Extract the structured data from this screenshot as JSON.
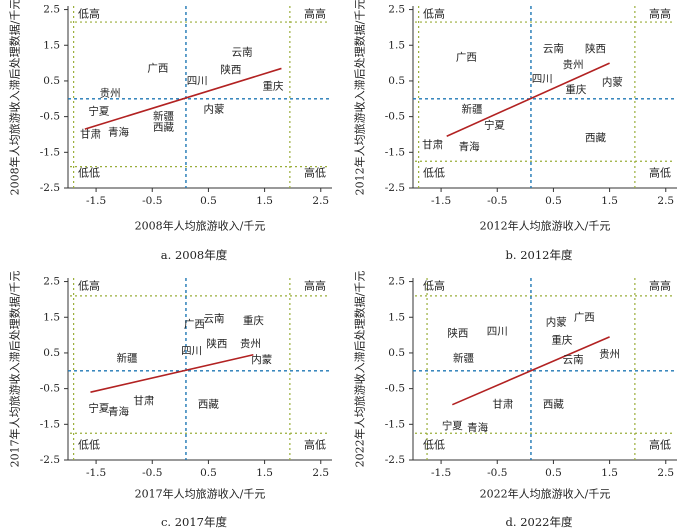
{
  "colors": {
    "axis": "#333333",
    "center_line": "#1f77b4",
    "quadrant_line": "#9aae3a",
    "regression": "#b22222",
    "text": "#222222"
  },
  "chart_data": [
    {
      "type": "scatter",
      "caption": "a.  2008年度",
      "xlabel": "2008年人均旅游收入/千元",
      "ylabel": "2008年人均旅游收入滞后处理数据/千元",
      "xlim": [
        -2.0,
        2.7
      ],
      "ylim": [
        -2.5,
        2.6
      ],
      "xticks": [
        "-1.5",
        "-0.5",
        "0.5",
        "1.5",
        "2.5"
      ],
      "yticks": [
        "2.5",
        "1.5",
        "0.5",
        "-0.5",
        "-1.5",
        "-2.5"
      ],
      "quadrant_labels": {
        "top_left": "低高",
        "top_right": "高高",
        "bottom_left": "低低",
        "bottom_right": "高低"
      },
      "center": {
        "x": 0.1,
        "y": 0.0
      },
      "quadrant_bounds": {
        "x": [
          -1.9,
          1.95
        ],
        "y": [
          -1.9,
          2.15
        ]
      },
      "regression_line": {
        "x": [
          -1.7,
          1.8
        ],
        "y": [
          -0.85,
          0.85
        ]
      },
      "points": [
        {
          "label": "广西",
          "x": -0.4,
          "y": 0.85
        },
        {
          "label": "云南",
          "x": 1.1,
          "y": 1.3
        },
        {
          "label": "陕西",
          "x": 0.9,
          "y": 0.8
        },
        {
          "label": "四川",
          "x": 0.3,
          "y": 0.5
        },
        {
          "label": "贵州",
          "x": -1.25,
          "y": 0.15
        },
        {
          "label": "重庆",
          "x": 1.65,
          "y": 0.35
        },
        {
          "label": "内蒙",
          "x": 0.6,
          "y": -0.3
        },
        {
          "label": "宁夏",
          "x": -1.45,
          "y": -0.35
        },
        {
          "label": "新疆",
          "x": -0.3,
          "y": -0.5
        },
        {
          "label": "西藏",
          "x": -0.3,
          "y": -0.8
        },
        {
          "label": "甘肃",
          "x": -1.6,
          "y": -1.0
        },
        {
          "label": "青海",
          "x": -1.1,
          "y": -0.95
        }
      ]
    },
    {
      "type": "scatter",
      "caption": "b.  2012年度",
      "xlabel": "2012年人均旅游收入/千元",
      "ylabel": "2012年人均旅游收入滞后处理数据/千元",
      "xlim": [
        -2.0,
        2.7
      ],
      "ylim": [
        -2.5,
        2.6
      ],
      "xticks": [
        "-1.5",
        "-0.5",
        "0.5",
        "1.5",
        "2.5"
      ],
      "yticks": [
        "2.5",
        "1.5",
        "0.5",
        "-0.5",
        "-1.5",
        "-2.5"
      ],
      "quadrant_labels": {
        "top_left": "低高",
        "top_right": "高高",
        "bottom_left": "低低",
        "bottom_right": "高低"
      },
      "center": {
        "x": 0.1,
        "y": 0.0
      },
      "quadrant_bounds": {
        "x": [
          -1.9,
          1.95
        ],
        "y": [
          -1.75,
          2.15
        ]
      },
      "regression_line": {
        "x": [
          -1.4,
          1.5
        ],
        "y": [
          -1.05,
          1.0
        ]
      },
      "points": [
        {
          "label": "广西",
          "x": -1.05,
          "y": 1.15
        },
        {
          "label": "云南",
          "x": 0.5,
          "y": 1.4
        },
        {
          "label": "陕西",
          "x": 1.25,
          "y": 1.4
        },
        {
          "label": "贵州",
          "x": 0.85,
          "y": 0.95
        },
        {
          "label": "四川",
          "x": 0.3,
          "y": 0.55
        },
        {
          "label": "内蒙",
          "x": 1.55,
          "y": 0.45
        },
        {
          "label": "重庆",
          "x": 0.9,
          "y": 0.25
        },
        {
          "label": "新疆",
          "x": -0.95,
          "y": -0.3
        },
        {
          "label": "宁夏",
          "x": -0.55,
          "y": -0.75
        },
        {
          "label": "西藏",
          "x": 1.25,
          "y": -1.1
        },
        {
          "label": "甘肃",
          "x": -1.65,
          "y": -1.3
        },
        {
          "label": "青海",
          "x": -1.0,
          "y": -1.35
        }
      ]
    },
    {
      "type": "scatter",
      "caption": "c.  2017年度",
      "xlabel": "2017年人均旅游收入/千元",
      "ylabel": "2017年人均旅游收入滞后处理数据/千元",
      "xlim": [
        -2.0,
        2.7
      ],
      "ylim": [
        -2.5,
        2.6
      ],
      "xticks": [
        "-1.5",
        "-0.5",
        "0.5",
        "1.5",
        "2.5"
      ],
      "yticks": [
        "2.5",
        "1.5",
        "0.5",
        "-0.5",
        "-1.5",
        "-2.5"
      ],
      "quadrant_labels": {
        "top_left": "低高",
        "top_right": "高高",
        "bottom_left": "低低",
        "bottom_right": "高低"
      },
      "center": {
        "x": 0.1,
        "y": 0.0
      },
      "quadrant_bounds": {
        "x": [
          -1.9,
          1.95
        ],
        "y": [
          -1.75,
          2.1
        ]
      },
      "regression_line": {
        "x": [
          -1.6,
          1.3
        ],
        "y": [
          -0.6,
          0.45
        ]
      },
      "points": [
        {
          "label": "广西",
          "x": 0.25,
          "y": 1.3
        },
        {
          "label": "云南",
          "x": 0.6,
          "y": 1.45
        },
        {
          "label": "重庆",
          "x": 1.3,
          "y": 1.4
        },
        {
          "label": "陕西",
          "x": 0.65,
          "y": 0.75
        },
        {
          "label": "贵州",
          "x": 1.25,
          "y": 0.75
        },
        {
          "label": "四川",
          "x": 0.2,
          "y": 0.55
        },
        {
          "label": "内蒙",
          "x": 1.45,
          "y": 0.3
        },
        {
          "label": "新疆",
          "x": -0.95,
          "y": 0.35
        },
        {
          "label": "甘肃",
          "x": -0.65,
          "y": -0.85
        },
        {
          "label": "宁夏",
          "x": -1.45,
          "y": -1.05
        },
        {
          "label": "青海",
          "x": -1.1,
          "y": -1.15
        },
        {
          "label": "西藏",
          "x": 0.5,
          "y": -0.95
        }
      ]
    },
    {
      "type": "scatter",
      "caption": "d.  2022年度",
      "xlabel": "2022年人均旅游收入/千元",
      "ylabel": "2022年人均旅游收入滞后处理数据/千元",
      "xlim": [
        -2.0,
        2.7
      ],
      "ylim": [
        -2.5,
        2.6
      ],
      "xticks": [
        "-1.5",
        "-0.5",
        "0.5",
        "1.5",
        "2.5"
      ],
      "yticks": [
        "2.5",
        "1.5",
        "0.5",
        "-0.5",
        "-1.5",
        "-2.5"
      ],
      "quadrant_labels": {
        "top_left": "低高",
        "top_right": "高高",
        "bottom_left": "低低",
        "bottom_right": "高低"
      },
      "center": {
        "x": 0.1,
        "y": 0.0
      },
      "quadrant_bounds": {
        "x": [
          -1.75,
          1.95
        ],
        "y": [
          -1.75,
          2.1
        ]
      },
      "regression_line": {
        "x": [
          -1.3,
          1.5
        ],
        "y": [
          -0.95,
          0.95
        ]
      },
      "points": [
        {
          "label": "内蒙",
          "x": 0.55,
          "y": 1.35
        },
        {
          "label": "广西",
          "x": 1.05,
          "y": 1.5
        },
        {
          "label": "陕西",
          "x": -1.2,
          "y": 1.05
        },
        {
          "label": "四川",
          "x": -0.5,
          "y": 1.1
        },
        {
          "label": "重庆",
          "x": 0.65,
          "y": 0.85
        },
        {
          "label": "贵州",
          "x": 1.5,
          "y": 0.45
        },
        {
          "label": "云南",
          "x": 0.85,
          "y": 0.3
        },
        {
          "label": "新疆",
          "x": -1.1,
          "y": 0.35
        },
        {
          "label": "甘肃",
          "x": -0.4,
          "y": -0.95
        },
        {
          "label": "西藏",
          "x": 0.5,
          "y": -0.95
        },
        {
          "label": "宁夏",
          "x": -1.3,
          "y": -1.55
        },
        {
          "label": "青海",
          "x": -0.85,
          "y": -1.6
        }
      ]
    }
  ]
}
